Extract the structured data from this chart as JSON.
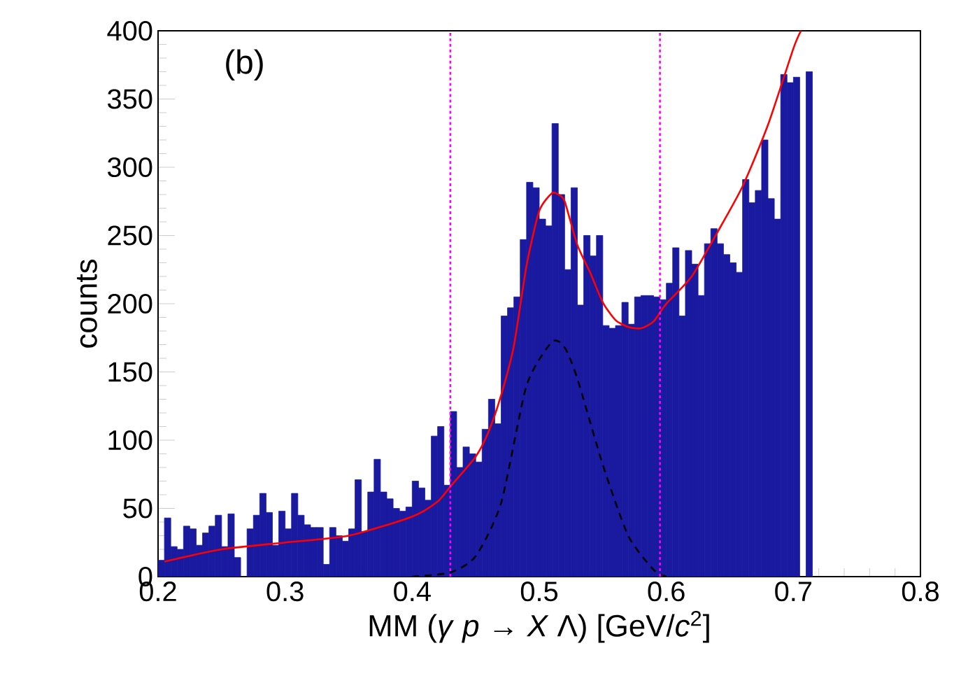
{
  "chart_data": {
    "type": "histogram",
    "xlabel": "MM (*γ* *p* → *X* Λ) [GeV/*c*$^{2}$]",
    "ylabel": "counts",
    "annotations": [
      "(b)"
    ],
    "xlim": [
      0.2,
      0.8
    ],
    "ylim": [
      0,
      400
    ],
    "xticks": [
      0.2,
      0.3,
      0.4,
      0.5,
      0.6,
      0.7,
      0.8
    ],
    "yticks": [
      0,
      50,
      100,
      150,
      200,
      250,
      300,
      350,
      400
    ],
    "bins": [
      0.2,
      0.205,
      0.21,
      0.215,
      0.22,
      0.225,
      0.23,
      0.235,
      0.24,
      0.245,
      0.25,
      0.255,
      0.26,
      0.265,
      0.27,
      0.275,
      0.28,
      0.285,
      0.29,
      0.295,
      0.3,
      0.305,
      0.31,
      0.315,
      0.32,
      0.325,
      0.33,
      0.335,
      0.34,
      0.345,
      0.35,
      0.355,
      0.36,
      0.365,
      0.37,
      0.375,
      0.38,
      0.385,
      0.39,
      0.395,
      0.4,
      0.405,
      0.41,
      0.415,
      0.42,
      0.425,
      0.43,
      0.435,
      0.44,
      0.445,
      0.45,
      0.455,
      0.46,
      0.465,
      0.47,
      0.475,
      0.48,
      0.485,
      0.49,
      0.495,
      0.5,
      0.505,
      0.51,
      0.515,
      0.52,
      0.525,
      0.53,
      0.535,
      0.54,
      0.545,
      0.55,
      0.555,
      0.56,
      0.565,
      0.57,
      0.575,
      0.58,
      0.585,
      0.59,
      0.595,
      0.6,
      0.605,
      0.61,
      0.615,
      0.62,
      0.625,
      0.63,
      0.635,
      0.64,
      0.645,
      0.65,
      0.655,
      0.66,
      0.665,
      0.67,
      0.675,
      0.68,
      0.685,
      0.69,
      0.695,
      0.7,
      0.705,
      0.71,
      0.715,
      0.72,
      0.725,
      0.73,
      0.735,
      0.74,
      0.745,
      0.75,
      0.755,
      0.76,
      0.765,
      0.77,
      0.775,
      0.78,
      0.785,
      0.79,
      0.795,
      0.8
    ],
    "color": "#1a1aa0",
    "values": [
      12,
      43,
      22,
      20,
      37,
      35,
      23,
      32,
      37,
      45,
      22,
      46,
      14,
      0,
      35,
      45,
      61,
      47,
      23,
      48,
      35,
      61,
      45,
      38,
      36,
      36,
      9,
      36,
      30,
      26,
      35,
      71,
      33,
      62,
      86,
      62,
      57,
      50,
      48,
      51,
      70,
      65,
      56,
      103,
      110,
      67,
      121,
      80,
      95,
      90,
      84,
      108,
      130,
      112,
      191,
      197,
      205,
      247,
      289,
      285,
      262,
      257,
      332,
      280,
      225,
      285,
      199,
      250,
      235,
      250,
      184,
      182,
      184,
      201,
      185,
      205,
      206,
      206,
      205,
      203,
      215,
      241,
      191,
      239,
      229,
      206,
      244,
      255,
      244,
      236,
      230,
      223,
      291,
      274,
      283,
      320,
      277,
      262,
      368,
      362,
      366,
      null,
      370,
      null,
      null,
      null,
      null,
      null,
      null,
      null,
      null,
      null,
      null,
      null,
      null,
      null,
      null,
      null,
      null,
      null
    ],
    "series": [
      {
        "type": "line",
        "color": "#ff0000",
        "line_style": "solid",
        "x": [
          0.205,
          0.25,
          0.3,
          0.35,
          0.4,
          0.42,
          0.43,
          0.45,
          0.46,
          0.47,
          0.48,
          0.49,
          0.5,
          0.51,
          0.515,
          0.52,
          0.53,
          0.54,
          0.55,
          0.56,
          0.57,
          0.58,
          0.59,
          0.6,
          0.62,
          0.64,
          0.66,
          0.68,
          0.7,
          0.706
        ],
        "values": [
          11,
          20,
          25,
          30,
          44,
          55,
          66,
          88,
          106,
          133,
          169,
          228,
          268,
          281,
          280,
          275,
          243,
          223,
          201,
          188,
          183,
          182,
          187,
          200,
          220,
          252,
          286,
          331,
          387,
          400
        ]
      },
      {
        "type": "line",
        "color": "#000000",
        "line_style": "dashed",
        "x": [
          0.4,
          0.43,
          0.45,
          0.47,
          0.49,
          0.51,
          0.52,
          0.53,
          0.55,
          0.57,
          0.59,
          0.6
        ],
        "values": [
          0,
          3,
          15,
          54,
          140,
          172,
          168,
          145,
          82,
          30,
          5,
          0
        ]
      }
    ],
    "ref_lines": [
      {
        "axis": "x",
        "value": 0.43,
        "color": "#ff00ff",
        "line_style": "dotted"
      },
      {
        "axis": "x",
        "value": 0.595,
        "color": "#ff00ff",
        "line_style": "dotted"
      }
    ]
  }
}
